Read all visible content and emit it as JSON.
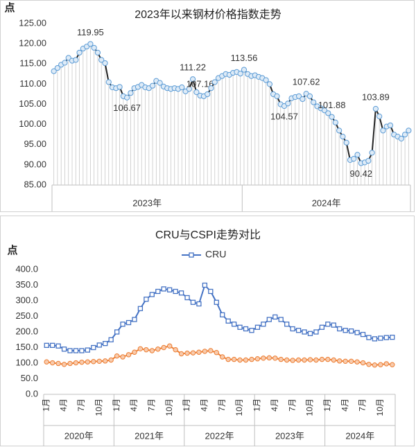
{
  "chart_data": [
    {
      "type": "line",
      "title": "2023年以来钢材价格指数走势",
      "y_label": "点",
      "ylim": [
        85,
        125
      ],
      "yticks": [
        {
          "value": 85,
          "label": "85.00"
        },
        {
          "value": 90,
          "label": "90.00"
        },
        {
          "value": 95,
          "label": "95.00"
        },
        {
          "value": 100,
          "label": "100.00"
        },
        {
          "value": 105,
          "label": "105.00"
        },
        {
          "value": 110,
          "label": "110.00"
        },
        {
          "value": 115,
          "label": "115.00"
        },
        {
          "value": 120,
          "label": "120.00"
        },
        {
          "value": 125,
          "label": "125.00"
        }
      ],
      "groups": [
        {
          "label": "2023年",
          "span": 52
        },
        {
          "label": "2024年",
          "span": 46
        }
      ],
      "droplines": true,
      "grid": false,
      "series": [
        {
          "color": "#222222",
          "marker": "circle",
          "marker_color": "#5b9bd5",
          "marker_fill": "#deebf7",
          "values": [
            113.2,
            114.0,
            114.8,
            115.3,
            116.5,
            115.8,
            116.0,
            117.8,
            118.8,
            119.3,
            119.95,
            119.0,
            117.8,
            116.0,
            115.2,
            110.5,
            109.2,
            109.0,
            109.3,
            107.0,
            106.67,
            107.8,
            109.0,
            109.3,
            109.8,
            109.2,
            109.0,
            109.6,
            110.8,
            110.3,
            109.4,
            109.0,
            108.8,
            109.0,
            108.8,
            109.2,
            108.2,
            108.8,
            111.22,
            108.0,
            107.16,
            107.0,
            107.5,
            109.0,
            110.5,
            111.5,
            112.0,
            112.5,
            112.3,
            112.8,
            113.0,
            112.6,
            113.56,
            112.5,
            112.0,
            112.2,
            111.8,
            111.5,
            111.0,
            110.0,
            107.5,
            107.0,
            105.0,
            104.57,
            105.2,
            106.5,
            106.8,
            107.0,
            106.3,
            107.62,
            107.0,
            105.5,
            104.5,
            104.0,
            103.5,
            102.8,
            101.88,
            100.5,
            98.5,
            97.0,
            95.5,
            91.2,
            91.5,
            92.5,
            90.42,
            90.6,
            91.0,
            93.0,
            103.89,
            102.0,
            98.5,
            99.5,
            99.8,
            97.5,
            97.0,
            96.5,
            97.5,
            98.5
          ],
          "value_labels": [
            null,
            null,
            null,
            null,
            null,
            null,
            null,
            null,
            null,
            null,
            "119.95",
            null,
            null,
            null,
            null,
            null,
            null,
            null,
            null,
            null,
            "106.67",
            null,
            null,
            null,
            null,
            null,
            null,
            null,
            null,
            null,
            null,
            null,
            null,
            null,
            null,
            null,
            null,
            null,
            "111.22",
            null,
            "107.16",
            null,
            null,
            null,
            null,
            null,
            null,
            null,
            null,
            null,
            null,
            null,
            "113.56",
            null,
            null,
            null,
            null,
            null,
            null,
            null,
            null,
            null,
            null,
            "104.57",
            null,
            null,
            null,
            null,
            null,
            "107.62",
            null,
            null,
            null,
            null,
            null,
            null,
            "101.88",
            null,
            null,
            null,
            null,
            null,
            null,
            null,
            "90.42",
            null,
            null,
            null,
            "103.89",
            null,
            null,
            null,
            null,
            null,
            null,
            null,
            null,
            null
          ]
        }
      ]
    },
    {
      "type": "line",
      "title": "CRU与CSPI走势对比",
      "y_label": "点",
      "ylim": [
        0,
        400
      ],
      "yticks": [
        {
          "value": 0,
          "label": "0.0"
        },
        {
          "value": 50,
          "label": "50.0"
        },
        {
          "value": 100,
          "label": "100.0"
        },
        {
          "value": 150,
          "label": "150.0"
        },
        {
          "value": 200,
          "label": "200.0"
        },
        {
          "value": 250,
          "label": "250.0"
        },
        {
          "value": 300,
          "label": "300.0"
        },
        {
          "value": 350,
          "label": "350.0"
        },
        {
          "value": 400,
          "label": "400.0"
        }
      ],
      "categories": [
        "1月",
        null,
        null,
        "4月",
        null,
        null,
        "7月",
        null,
        null,
        "10月",
        null,
        null,
        "1月",
        null,
        null,
        "4月",
        null,
        null,
        "7月",
        null,
        null,
        "10月",
        null,
        null,
        "1月",
        null,
        null,
        "4月",
        null,
        null,
        "7月",
        null,
        null,
        "10月",
        null,
        null,
        "1月",
        null,
        null,
        "4月",
        null,
        null,
        "7月",
        null,
        null,
        "10月",
        null,
        null,
        "1月",
        null,
        null,
        "4月",
        null,
        null,
        "7月",
        null,
        null,
        "10月",
        null,
        null
      ],
      "groups": [
        {
          "label": "2020年",
          "span": 12
        },
        {
          "label": "2021年",
          "span": 12
        },
        {
          "label": "2022年",
          "span": 12
        },
        {
          "label": "2023年",
          "span": 12
        },
        {
          "label": "2024年",
          "span": 12
        }
      ],
      "droplines": false,
      "grid": false,
      "series": [
        {
          "name": "CRU",
          "color": "#4472c4",
          "marker": "square",
          "marker_color": "#4472c4",
          "marker_fill": "#ffffff",
          "values": [
            157,
            157,
            155,
            145,
            140,
            140,
            140,
            142,
            150,
            158,
            163,
            175,
            200,
            225,
            230,
            240,
            275,
            305,
            320,
            330,
            338,
            335,
            330,
            325,
            310,
            295,
            290,
            350,
            330,
            295,
            255,
            235,
            225,
            215,
            210,
            205,
            215,
            225,
            240,
            248,
            240,
            225,
            210,
            205,
            200,
            195,
            200,
            215,
            225,
            222,
            210,
            205,
            203,
            198,
            192,
            182,
            178,
            180,
            182,
            183
          ]
        },
        {
          "color": "#ed7d31",
          "marker": "circle",
          "marker_color": "#ed7d31",
          "marker_fill": "#f8cbad",
          "values": [
            104,
            101,
            99,
            96,
            99,
            101,
            103,
            104,
            105,
            106,
            107,
            110,
            123,
            120,
            127,
            135,
            146,
            143,
            140,
            145,
            150,
            155,
            143,
            130,
            132,
            133,
            135,
            138,
            140,
            134,
            120,
            112,
            112,
            110,
            110,
            112,
            114,
            116,
            117,
            116,
            112,
            110,
            109,
            110,
            110,
            111,
            110,
            112,
            112,
            110,
            107,
            106,
            106,
            104,
            101,
            96,
            94,
            95,
            98,
            95
          ]
        }
      ]
    }
  ]
}
